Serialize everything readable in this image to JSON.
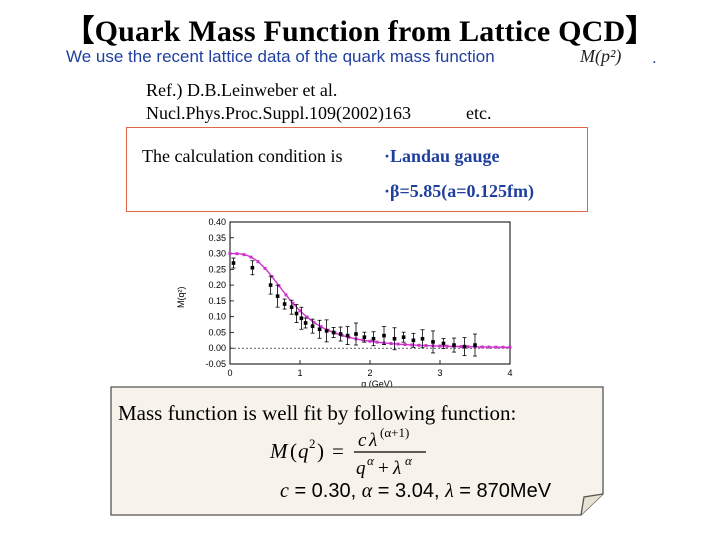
{
  "slide": {
    "title": "【Quark Mass Function from Lattice QCD】",
    "intro": "We use the recent lattice data of the quark mass function",
    "intro_symbol": "M(p²)",
    "intro_end": ".",
    "ref_line1": "Ref.)   D.B.Leinweber et al.",
    "ref_line2": "Nucl.Phys.Proc.Suppl.109(2002)163",
    "ref_etc": "etc.",
    "condition_label": "The calculation condition is",
    "condition_gauge": "·Landau gauge",
    "condition_beta": "·β=5.85(a=0.125fm)",
    "fit_label": "Mass function is well  fit by following function:",
    "fit_params_c": "c",
    "fit_params_c_val": " = 0.30,  ",
    "fit_params_alpha": "α",
    "fit_params_alpha_val": " = 3.04,  ",
    "fit_params_lambda": "λ",
    "fit_params_lambda_val": " = 870MeV"
  },
  "chart_data": {
    "type": "scatter",
    "xlabel": "q (GeV)",
    "ylabel": "M(q²)",
    "xlim": [
      0,
      4
    ],
    "ylim": [
      -0.05,
      0.4
    ],
    "xticks": [
      "0",
      "1",
      "2",
      "3",
      "4"
    ],
    "yticks": [
      "0.40",
      "0.35",
      "0.30",
      "0.25",
      "0.20",
      "0.15",
      "0.10",
      "0.05",
      "0.00",
      "-0.05"
    ],
    "series": [
      {
        "values_x": [
          0.05,
          0.32,
          0.58,
          0.68,
          0.78,
          0.88,
          0.95,
          1.02,
          1.08,
          1.18,
          1.28,
          1.38,
          1.48,
          1.58,
          1.68,
          1.8,
          1.92,
          2.05,
          2.2,
          2.35,
          2.48,
          2.62,
          2.75,
          2.9,
          3.05,
          3.2,
          3.35,
          3.5
        ],
        "values_y": [
          0.27,
          0.255,
          0.2,
          0.165,
          0.14,
          0.13,
          0.11,
          0.095,
          0.08,
          0.07,
          0.06,
          0.055,
          0.05,
          0.045,
          0.04,
          0.045,
          0.035,
          0.03,
          0.04,
          0.03,
          0.035,
          0.025,
          0.03,
          0.02,
          0.015,
          0.01,
          0.005,
          0.01
        ]
      }
    ],
    "fit_color": "#cc33cc",
    "point_color": "#000000"
  },
  "colors": {
    "accent": "#1f3f9f",
    "box_border": "#e0654a",
    "fit_curve": "#cc33cc",
    "note_bg": "#f7f3ea"
  }
}
